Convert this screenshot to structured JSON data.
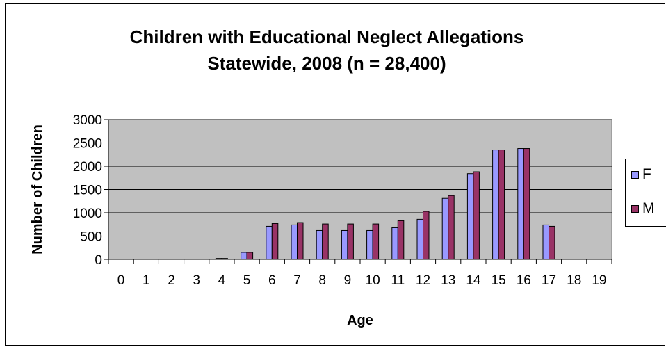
{
  "chart_data": {
    "type": "bar",
    "title_line1": "Children with Educational Neglect Allegations",
    "title_line2": "Statewide, 2008 (n = 28,400)",
    "xlabel": "Age",
    "ylabel": "Number of Children",
    "ylim": [
      0,
      3000
    ],
    "yticks": [
      0,
      500,
      1000,
      1500,
      2000,
      2500,
      3000
    ],
    "grid": true,
    "legend_position": "right",
    "categories": [
      "0",
      "1",
      "2",
      "3",
      "4",
      "5",
      "6",
      "7",
      "8",
      "9",
      "10",
      "11",
      "12",
      "13",
      "14",
      "15",
      "16",
      "17",
      "18",
      "19"
    ],
    "series": [
      {
        "name": "F",
        "color": "#9999ff",
        "values": [
          0,
          0,
          0,
          0,
          20,
          150,
          710,
          740,
          620,
          620,
          620,
          680,
          860,
          1310,
          1840,
          2350,
          2380,
          740,
          0,
          0
        ]
      },
      {
        "name": "M",
        "color": "#993366",
        "values": [
          0,
          0,
          0,
          0,
          20,
          150,
          770,
          790,
          760,
          760,
          760,
          830,
          1030,
          1370,
          1880,
          2350,
          2380,
          710,
          0,
          0
        ]
      }
    ],
    "plot_background": "#c0c0c0"
  }
}
